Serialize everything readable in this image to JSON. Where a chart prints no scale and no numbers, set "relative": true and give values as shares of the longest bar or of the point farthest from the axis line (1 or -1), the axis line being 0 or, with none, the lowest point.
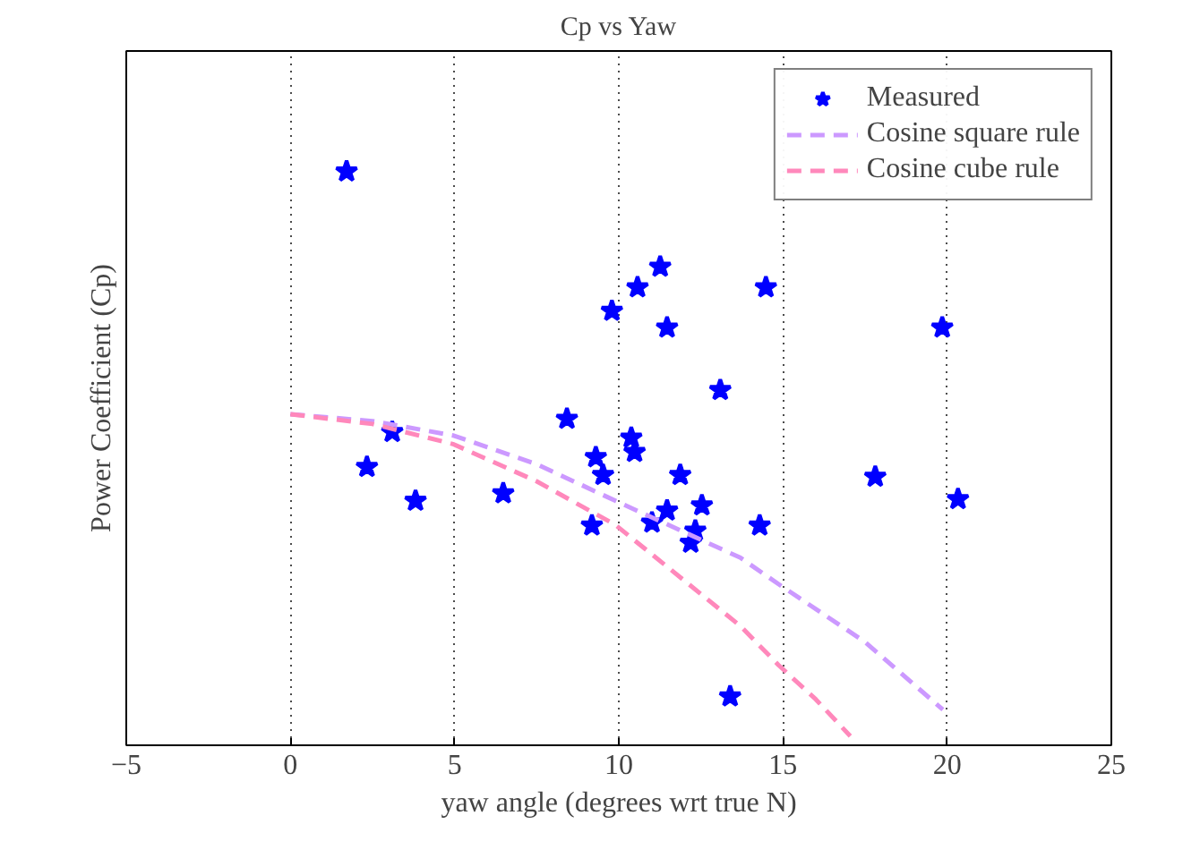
{
  "chart_data": {
    "type": "scatter",
    "title": "Cp vs Yaw",
    "xlabel": "yaw angle (degrees wrt true N)",
    "ylabel": "Power Coefficient (Cp)",
    "relative": true,
    "xlim": [
      -5,
      25
    ],
    "xticks": [
      -5,
      0,
      5,
      10,
      15,
      20,
      25
    ],
    "grid": "x",
    "legend": "top right",
    "series": [
      {
        "name": "Measured",
        "marker": "star",
        "color": "#0000ff",
        "x": [
          1.71,
          2.33,
          3.1,
          3.81,
          6.48,
          8.42,
          9.18,
          9.3,
          9.52,
          9.79,
          10.38,
          10.48,
          10.57,
          11.01,
          11.26,
          11.47,
          11.47,
          11.87,
          12.33,
          12.19,
          12.53,
          13.09,
          13.39,
          14.48,
          14.29,
          17.81,
          19.85,
          20.33
        ],
        "values": [
          1.0,
          0.485,
          0.546,
          0.426,
          0.439,
          0.569,
          0.383,
          0.502,
          0.471,
          0.757,
          0.536,
          0.511,
          0.798,
          0.388,
          0.834,
          0.728,
          0.409,
          0.471,
          0.374,
          0.353,
          0.418,
          0.619,
          0.085,
          0.798,
          0.383,
          0.468,
          0.728,
          0.429
        ]
      },
      {
        "name": "Cosine square rule",
        "type": "line",
        "line_style": "dashed",
        "color": "#cc99ff",
        "x": [
          0,
          2.5,
          4.95,
          7.5,
          9.9,
          13.7,
          14.86,
          17.5,
          19.87
        ],
        "values": [
          0.577,
          0.565,
          0.54,
          0.49,
          0.426,
          0.327,
          0.281,
          0.18,
          0.062
        ]
      },
      {
        "name": "Cosine cube rule",
        "type": "line",
        "line_style": "dashed",
        "color": "#ff88bb",
        "x": [
          0,
          2.5,
          4.95,
          7.5,
          9.9,
          13.7,
          14.86,
          16,
          17.05
        ],
        "values": [
          0.577,
          0.56,
          0.525,
          0.46,
          0.384,
          0.208,
          0.14,
          0.08,
          0.016
        ]
      }
    ]
  }
}
